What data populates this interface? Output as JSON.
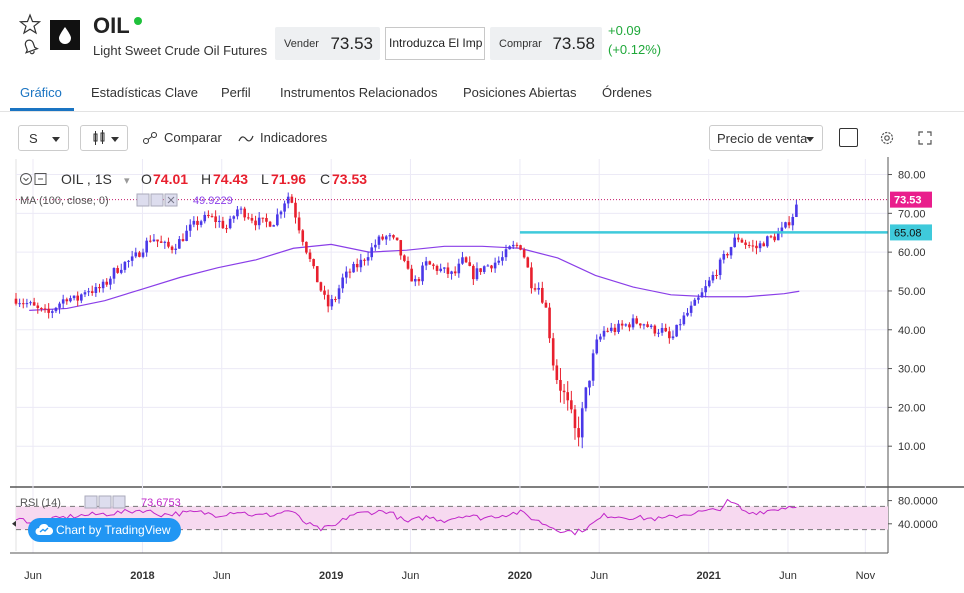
{
  "instrument": {
    "symbol": "OIL",
    "full_name": "Light Sweet Crude Oil Futures",
    "sell_label": "Vender",
    "sell_price": "73.53",
    "quantity_placeholder": "Introduzca El Imp",
    "buy_label": "Comprar",
    "buy_price": "73.58",
    "change_abs": "+0.09",
    "change_pct": "(+0.12%)"
  },
  "tabs": [
    "Gráfico",
    "Estadísticas Clave",
    "Perfil",
    "Instrumentos Relacionados",
    "Posiciones Abiertas",
    "Órdenes"
  ],
  "toolbar": {
    "interval": "S",
    "compare_label": "Comparar",
    "indicators_label": "Indicadores",
    "price_type": "Precio de venta"
  },
  "legend": {
    "symbol": "OIL , 1S",
    "open_label": "O",
    "open": "74.01",
    "high_label": "H",
    "high": "74.43",
    "low_label": "L",
    "low": "71.96",
    "close_label": "C",
    "close": "73.53",
    "ma_label": "MA (100, close, 0)",
    "ma_value": "49.9229",
    "rsi_label": "RSI (14)",
    "rsi_value": "73.6753"
  },
  "tradingview_badge": "Chart by TradingView",
  "colors": {
    "up": "#4a38e8",
    "down": "#e8202e",
    "ma": "#8a3ee8",
    "level": "#3fcadb",
    "rsi": "#c026c9",
    "accent": "#1a74c2"
  },
  "chart_data": {
    "type": "candlestick",
    "y_ticks": [
      "80.00",
      "70.00",
      "60.00",
      "50.00",
      "40.00",
      "30.00",
      "20.00",
      "10.00"
    ],
    "ylim": [
      0,
      84
    ],
    "x_ticks": [
      "Jun",
      "2018",
      "Jun",
      "2019",
      "Jun",
      "2020",
      "Jun",
      "2021",
      "Jun",
      "Nov"
    ],
    "x_tick_times": [
      2017.42,
      2018.0,
      2018.42,
      2019.0,
      2019.42,
      2020.0,
      2020.42,
      2021.0,
      2021.42,
      2021.83
    ],
    "xlim": [
      2017.33,
      2021.95
    ],
    "last_price_label": "73.53",
    "last_price": 73.53,
    "level_label": "65.08",
    "level": 65.08,
    "level_start": 2020.0,
    "close_series": [
      [
        2017.33,
        48
      ],
      [
        2017.4,
        46.5
      ],
      [
        2017.45,
        45
      ],
      [
        2017.5,
        44
      ],
      [
        2017.55,
        46.5
      ],
      [
        2017.6,
        48.5
      ],
      [
        2017.65,
        47.5
      ],
      [
        2017.7,
        50.5
      ],
      [
        2017.75,
        50
      ],
      [
        2017.8,
        51.5
      ],
      [
        2017.85,
        55
      ],
      [
        2017.9,
        57
      ],
      [
        2017.95,
        58
      ],
      [
        2018.0,
        61
      ],
      [
        2018.05,
        64
      ],
      [
        2018.1,
        62
      ],
      [
        2018.15,
        61
      ],
      [
        2018.2,
        63
      ],
      [
        2018.25,
        66
      ],
      [
        2018.3,
        68
      ],
      [
        2018.35,
        69
      ],
      [
        2018.4,
        68
      ],
      [
        2018.45,
        66
      ],
      [
        2018.5,
        71
      ],
      [
        2018.55,
        70
      ],
      [
        2018.6,
        68
      ],
      [
        2018.65,
        67.5
      ],
      [
        2018.7,
        68
      ],
      [
        2018.75,
        73
      ],
      [
        2018.78,
        75
      ],
      [
        2018.82,
        68
      ],
      [
        2018.86,
        62
      ],
      [
        2018.9,
        56
      ],
      [
        2018.94,
        51
      ],
      [
        2018.98,
        46
      ],
      [
        2019.02,
        48
      ],
      [
        2019.06,
        53
      ],
      [
        2019.1,
        55
      ],
      [
        2019.15,
        57
      ],
      [
        2019.2,
        60
      ],
      [
        2019.25,
        63
      ],
      [
        2019.3,
        64
      ],
      [
        2019.35,
        62
      ],
      [
        2019.4,
        55
      ],
      [
        2019.45,
        52
      ],
      [
        2019.5,
        57
      ],
      [
        2019.55,
        56
      ],
      [
        2019.6,
        55
      ],
      [
        2019.65,
        54
      ],
      [
        2019.7,
        58
      ],
      [
        2019.75,
        54
      ],
      [
        2019.8,
        56
      ],
      [
        2019.85,
        57
      ],
      [
        2019.9,
        58
      ],
      [
        2019.95,
        61
      ],
      [
        2020.0,
        62
      ],
      [
        2020.03,
        58
      ],
      [
        2020.06,
        52
      ],
      [
        2020.1,
        51
      ],
      [
        2020.14,
        45
      ],
      [
        2020.18,
        30
      ],
      [
        2020.22,
        25
      ],
      [
        2020.26,
        19
      ],
      [
        2020.3,
        12
      ],
      [
        2020.33,
        18
      ],
      [
        2020.37,
        29
      ],
      [
        2020.4,
        36
      ],
      [
        2020.45,
        40
      ],
      [
        2020.5,
        40
      ],
      [
        2020.55,
        41
      ],
      [
        2020.6,
        42
      ],
      [
        2020.65,
        42
      ],
      [
        2020.7,
        40
      ],
      [
        2020.75,
        40
      ],
      [
        2020.8,
        37
      ],
      [
        2020.85,
        42
      ],
      [
        2020.9,
        45
      ],
      [
        2020.95,
        48
      ],
      [
        2021.0,
        52
      ],
      [
        2021.05,
        56
      ],
      [
        2021.1,
        60
      ],
      [
        2021.15,
        64
      ],
      [
        2021.2,
        62
      ],
      [
        2021.25,
        61
      ],
      [
        2021.3,
        63
      ],
      [
        2021.35,
        64
      ],
      [
        2021.4,
        66
      ],
      [
        2021.45,
        70
      ],
      [
        2021.48,
        73.53
      ]
    ],
    "ma_series": [
      [
        2017.4,
        45
      ],
      [
        2017.6,
        45.5
      ],
      [
        2017.8,
        47.5
      ],
      [
        2018.0,
        50.5
      ],
      [
        2018.2,
        53.5
      ],
      [
        2018.4,
        56
      ],
      [
        2018.6,
        58
      ],
      [
        2018.8,
        61
      ],
      [
        2019.0,
        62
      ],
      [
        2019.2,
        60
      ],
      [
        2019.4,
        60.5
      ],
      [
        2019.6,
        61.5
      ],
      [
        2019.8,
        61.5
      ],
      [
        2020.0,
        61
      ],
      [
        2020.2,
        58.5
      ],
      [
        2020.4,
        54
      ],
      [
        2020.6,
        51
      ],
      [
        2020.8,
        49
      ],
      [
        2021.0,
        48.5
      ],
      [
        2021.2,
        48.5
      ],
      [
        2021.4,
        49.3
      ],
      [
        2021.48,
        49.92
      ]
    ],
    "rsi_ticks": [
      "80.0000",
      "40.0000"
    ],
    "rsi_ylim": [
      0,
      100
    ],
    "rsi_bands": [
      70,
      30
    ],
    "rsi_series": [
      [
        2017.33,
        50
      ],
      [
        2017.4,
        44
      ],
      [
        2017.45,
        40
      ],
      [
        2017.5,
        46
      ],
      [
        2017.6,
        52
      ],
      [
        2017.7,
        55
      ],
      [
        2017.8,
        57
      ],
      [
        2017.9,
        60
      ],
      [
        2018.0,
        64
      ],
      [
        2018.1,
        56
      ],
      [
        2018.2,
        58
      ],
      [
        2018.3,
        60
      ],
      [
        2018.4,
        55
      ],
      [
        2018.5,
        62
      ],
      [
        2018.6,
        54
      ],
      [
        2018.7,
        56
      ],
      [
        2018.78,
        64
      ],
      [
        2018.86,
        42
      ],
      [
        2018.94,
        30
      ],
      [
        2019.02,
        36
      ],
      [
        2019.1,
        55
      ],
      [
        2019.2,
        60
      ],
      [
        2019.3,
        62
      ],
      [
        2019.4,
        42
      ],
      [
        2019.5,
        52
      ],
      [
        2019.6,
        46
      ],
      [
        2019.7,
        55
      ],
      [
        2019.8,
        50
      ],
      [
        2019.9,
        55
      ],
      [
        2020.0,
        60
      ],
      [
        2020.1,
        44
      ],
      [
        2020.2,
        30
      ],
      [
        2020.3,
        25
      ],
      [
        2020.37,
        36
      ],
      [
        2020.45,
        55
      ],
      [
        2020.55,
        52
      ],
      [
        2020.65,
        50
      ],
      [
        2020.75,
        48
      ],
      [
        2020.85,
        55
      ],
      [
        2020.95,
        60
      ],
      [
        2021.05,
        64
      ],
      [
        2021.1,
        78
      ],
      [
        2021.15,
        72
      ],
      [
        2021.2,
        58
      ],
      [
        2021.3,
        62
      ],
      [
        2021.4,
        68
      ],
      [
        2021.48,
        73.68
      ]
    ]
  }
}
